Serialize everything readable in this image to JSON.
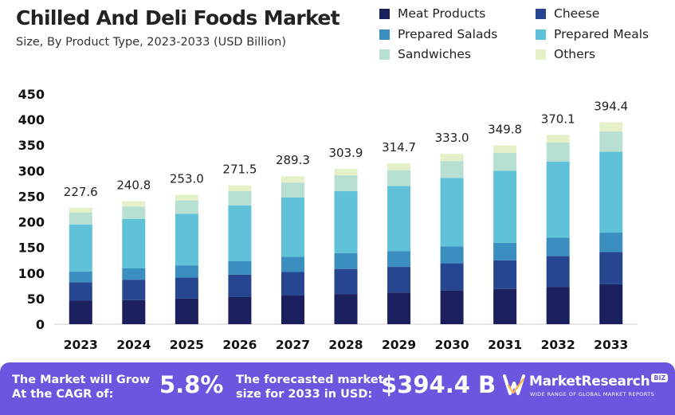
{
  "title": "Chilled And Deli Foods Market",
  "subtitle": "Size, By Product Type, 2023-2033 (USD Billion)",
  "legend": [
    {
      "name": "Meat Products",
      "color": "#1b1f5e"
    },
    {
      "name": "Cheese",
      "color": "#26468f"
    },
    {
      "name": "Prepared Salads",
      "color": "#3b8ec0"
    },
    {
      "name": "Prepared Meals",
      "color": "#5fc2d8"
    },
    {
      "name": "Sandwiches",
      "color": "#b8e0d2"
    },
    {
      "name": "Others",
      "color": "#e4f1c8"
    }
  ],
  "chart_data": {
    "type": "bar",
    "stacked": true,
    "title": "Chilled And Deli Foods Market",
    "subtitle": "Size, By Product Type, 2023-2033 (USD Billion)",
    "xlabel": "",
    "ylabel": "",
    "ylim": [
      0,
      450
    ],
    "yticks": [
      0,
      50,
      100,
      150,
      200,
      250,
      300,
      350,
      400,
      450
    ],
    "grid": false,
    "legend_position": "top-right",
    "categories": [
      "2023",
      "2024",
      "2025",
      "2026",
      "2027",
      "2028",
      "2029",
      "2030",
      "2031",
      "2032",
      "2033"
    ],
    "totals": [
      "227.6",
      "240.8",
      "253.0",
      "271.5",
      "289.3",
      "303.9",
      "314.7",
      "333.0",
      "349.8",
      "370.1",
      "394.4"
    ],
    "total_values": [
      227.6,
      240.8,
      253.0,
      271.5,
      289.3,
      303.9,
      314.7,
      333.0,
      349.8,
      370.1,
      394.4
    ],
    "series": [
      {
        "name": "Meat Products",
        "values": [
          46,
          47,
          50,
          53,
          56,
          59,
          62,
          66,
          69,
          73,
          78
        ]
      },
      {
        "name": "Cheese",
        "values": [
          36,
          40,
          41,
          44,
          46,
          49,
          50,
          53,
          56,
          60,
          63
        ]
      },
      {
        "name": "Prepared Salads",
        "values": [
          21,
          22,
          24,
          26,
          30,
          31,
          31,
          33,
          34,
          36,
          38
        ]
      },
      {
        "name": "Prepared Meals",
        "values": [
          92,
          97,
          101,
          109,
          116,
          121,
          127,
          134,
          141,
          149,
          158
        ]
      },
      {
        "name": "Sandwiches",
        "values": [
          23,
          24,
          26,
          28,
          29,
          31,
          31,
          33,
          35,
          37,
          40
        ]
      },
      {
        "name": "Others",
        "values": [
          9.6,
          10.8,
          11.0,
          11.5,
          12.3,
          12.9,
          13.7,
          14.0,
          14.8,
          15.1,
          17.4
        ]
      }
    ]
  },
  "banner": {
    "cagr_label_line1": "The Market will Grow",
    "cagr_label_line2": "At the CAGR of:",
    "cagr_value": "5.8%",
    "forecast_label_line1": "The forecasted market",
    "forecast_label_line2": "size for 2033 in USD:",
    "forecast_value": "$394.4 B",
    "logo_name": "MarketResearch",
    "logo_badge": "BIZ",
    "logo_tagline": "WIDE RANGE OF GLOBAL MARKET REPORTS"
  }
}
